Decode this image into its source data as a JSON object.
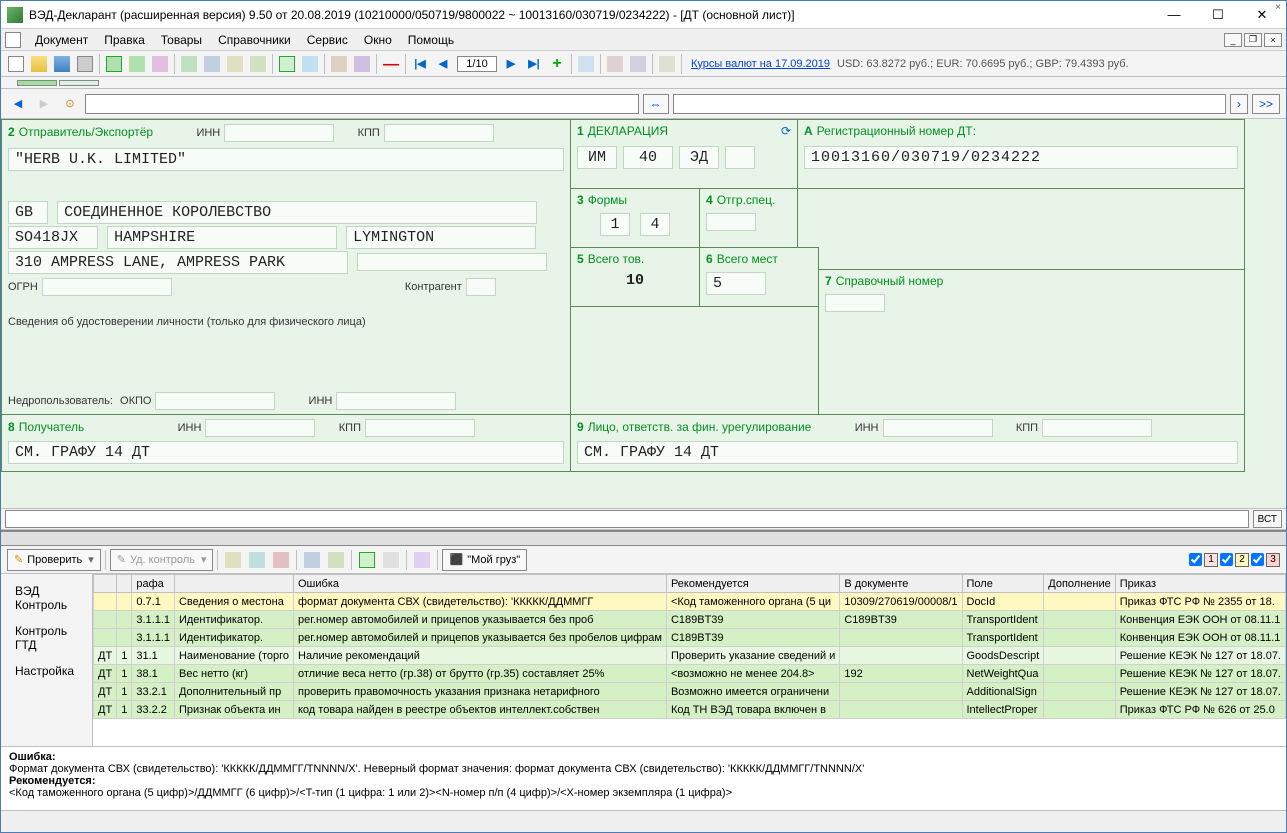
{
  "window": {
    "title": "ВЭД-Декларант (расширенная версия) 9.50 от 20.08.2019  (10210000/050719/9800022 ~ 10013160/030719/0234222) - [ДТ (основной лист)]"
  },
  "menu": {
    "items": [
      "Документ",
      "Правка",
      "Товары",
      "Справочники",
      "Сервис",
      "Окно",
      "Помощь"
    ]
  },
  "toolbar": {
    "page": "1/10",
    "rates_link": "Курсы валют на 17.09.2019",
    "rates_text": "USD: 63.8272 руб.; EUR: 70.6695 руб.; GBP: 79.4393 руб."
  },
  "navbar": {
    "arrow": "⇔",
    "more": ">>"
  },
  "form": {
    "box2": {
      "num": "2",
      "title": "Отправитель/Экспортёр",
      "inn": "ИНН",
      "kpp": "КПП",
      "name": "\"HERB U.K. LIMITED\"",
      "country_code": "GB",
      "country": "СОЕДИНЕННОЕ КОРОЛЕВСТВО",
      "postcode": "SO418JX",
      "region": "HAMPSHIRE",
      "city": "LYMINGTON",
      "address": "310 AMPRESS LANE, AMPRESS PARK",
      "ogrn": "ОГРН",
      "contr": "Контрагент",
      "identity": "Сведения об удостоверении личности (только для физического лица)",
      "nedro": "Недропользователь:",
      "okpo": "ОКПО",
      "inn2": "ИНН"
    },
    "box1": {
      "num": "1",
      "title": "ДЕКЛАРАЦИЯ",
      "v1": "ИМ",
      "v2": "40",
      "v3": "ЭД"
    },
    "boxA": {
      "num": "A",
      "title": "Регистрационный номер ДТ:",
      "value": "10013160/030719/0234222"
    },
    "box3": {
      "num": "3",
      "title": "Формы",
      "v1": "1",
      "v2": "4"
    },
    "box4": {
      "num": "4",
      "title": "Отгр.спец."
    },
    "box5": {
      "num": "5",
      "title": "Всего тов.",
      "value": "10"
    },
    "box6": {
      "num": "6",
      "title": "Всего мест",
      "value": "5"
    },
    "box7": {
      "num": "7",
      "title": "Справочный номер"
    },
    "box8": {
      "num": "8",
      "title": "Получатель",
      "inn": "ИНН",
      "kpp": "КПП",
      "value": "СМ. ГРАФУ 14 ДТ"
    },
    "box9": {
      "num": "9",
      "title": "Лицо, ответств. за фин. урегулирование",
      "inn": "ИНН",
      "kpp": "КПП",
      "value": "СМ. ГРАФУ 14 ДТ"
    }
  },
  "formula": {
    "btn": "ВСТ"
  },
  "check_toolbar": {
    "check": "Проверить",
    "del": "Уд. контроль",
    "cargo": "\"Мой груз\"",
    "chk1": "1",
    "chk2": "2",
    "chk3": "3"
  },
  "side_tabs": [
    "ВЭД Контроль",
    "Контроль ГТД",
    "Настройка"
  ],
  "grid": {
    "headers": [
      "",
      "",
      "рафа",
      "",
      "Ошибка",
      "Рекомендуется",
      "В документе",
      "Поле",
      "Дополнение",
      "Приказ"
    ],
    "rows": [
      {
        "cls": "row-yellow",
        "c": [
          "",
          "",
          "0.7.1",
          "Сведения о местона",
          "формат документа СВХ (свидетельство): 'ККККК/ДДММГГ",
          "<Код таможенного органа (5 ци",
          "10309/270619/00008/1",
          "DocId",
          "",
          "Приказ ФТС РФ № 2355 от 18."
        ]
      },
      {
        "cls": "row-green",
        "c": [
          "",
          "",
          "3.1.1.1",
          "Идентификатор.",
          "рег.номер автомобилей и прицепов указывается без проб",
          "C189BT39",
          "C189BT39",
          "TransportIdent",
          "",
          "Конвенция ЕЭК ООН от 08.11.1"
        ]
      },
      {
        "cls": "row-green",
        "c": [
          "",
          "",
          "3.1.1.1",
          "Идентификатор.",
          "рег.номер автомобилей и прицепов указывается без пробелов цифрам",
          "C189BT39",
          "",
          "TransportIdent",
          "",
          "Конвенция ЕЭК ООН от 08.11.1"
        ]
      },
      {
        "cls": "row-pale",
        "c": [
          "ДТ",
          "1",
          "31.1",
          "Наименование (торго",
          "Наличие рекомендаций",
          "Проверить указание сведений и",
          "",
          "GoodsDescript",
          "",
          "Решение КЕЭК № 127 от 18.07."
        ]
      },
      {
        "cls": "row-green",
        "c": [
          "ДТ",
          "1",
          "38.1",
          "Вес нетто (кг)",
          "отличие веса нетто (гр.38) от брутто (гр.35) составляет 25%",
          "<возможно не менее 204.8>",
          "192",
          "NetWeightQua",
          "",
          "Решение КЕЭК № 127 от 18.07."
        ]
      },
      {
        "cls": "row-green",
        "c": [
          "ДТ",
          "1",
          "33.2.1",
          "Дополнительный пр",
          "проверить правомочность указания признака нетарифного",
          "Возможно имеется ограничени",
          "",
          "AdditionalSign",
          "",
          "Решение КЕЭК № 127 от 18.07."
        ]
      },
      {
        "cls": "row-green",
        "c": [
          "ДТ",
          "1",
          "33.2.2",
          "Признак объекта ин",
          "код товара найден в реестре объектов интеллект.собствен",
          "Код ТН ВЭД товара включен в",
          "",
          "IntellectProper",
          "",
          "Приказ ФТС РФ № 626 от 25.0"
        ]
      }
    ]
  },
  "error_pane": {
    "l1": "Ошибка:",
    "l2": "Формат документа СВХ (свидетельство): 'ККККК/ДДММГГ/TNNNN/X'. Неверный формат значения: формат документа СВХ (свидетельство): 'ККККК/ДДММГГ/TNNNN/X'",
    "l3": "Рекомендуется:",
    "l4": "<Код таможенного органа (5 цифр)>/ДДММГГ (6 цифр)>/<T-тип (1 цифра: 1 или 2)><N-номер п/п (4 цифр)>/<X-номер экземпляра (1 цифра)>"
  },
  "colors": {
    "green_border": "#5a8a5a",
    "green_bg": "#e8f4e8",
    "green_text": "#009020",
    "yellow_row": "#fff8c0",
    "green_row": "#d4f0c4",
    "pale_row": "#e8f8e0"
  }
}
